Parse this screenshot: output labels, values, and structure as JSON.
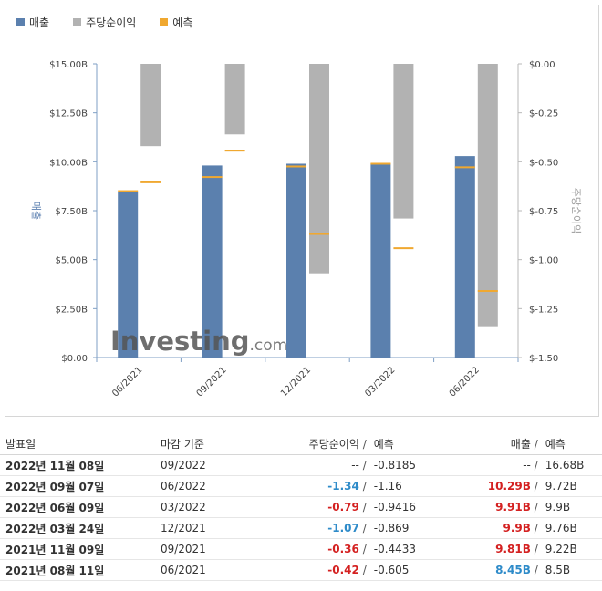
{
  "legend": {
    "revenue": "매출",
    "eps": "주당순이익",
    "forecast": "예측"
  },
  "colors": {
    "revenue": "#5b80ae",
    "eps": "#b2b2b2",
    "forecast": "#f0a830",
    "positive": "#2e8bc9",
    "negative": "#d42121"
  },
  "chart_data": {
    "type": "bar",
    "categories": [
      "06/2021",
      "09/2021",
      "12/2021",
      "03/2022",
      "06/2022"
    ],
    "left_axis": {
      "label": "매출",
      "min": 0,
      "max": 15,
      "ticks": [
        "$0.00",
        "$2.50B",
        "$5.00B",
        "$7.50B",
        "$10.00B",
        "$12.50B",
        "$15.00B"
      ],
      "tick_values": [
        0,
        2.5,
        5,
        7.5,
        10,
        12.5,
        15
      ]
    },
    "right_axis": {
      "label": "주당순이익",
      "min": -1.5,
      "max": 0,
      "ticks": [
        "$0.00",
        "$-0.25",
        "$-0.50",
        "$-0.75",
        "$-1.00",
        "$-1.25",
        "$-1.50"
      ],
      "tick_values": [
        0,
        -0.25,
        -0.5,
        -0.75,
        -1.0,
        -1.25,
        -1.5
      ]
    },
    "series": [
      {
        "name": "매출",
        "axis": "left",
        "values": [
          8.45,
          9.81,
          9.9,
          9.91,
          10.29
        ]
      },
      {
        "name": "매출 예측",
        "axis": "left",
        "values": [
          8.5,
          9.22,
          9.76,
          9.9,
          9.72
        ]
      },
      {
        "name": "주당순이익",
        "axis": "right",
        "values": [
          -0.42,
          -0.36,
          -1.07,
          -0.79,
          -1.34
        ]
      },
      {
        "name": "주당순이익 예측",
        "axis": "right",
        "values": [
          -0.605,
          -0.4433,
          -0.869,
          -0.9416,
          -1.16
        ]
      }
    ],
    "grid": false,
    "legend_position": "top-left"
  },
  "logo": {
    "brand": "Investing",
    "suffix": ".com"
  },
  "table": {
    "headers": {
      "date": "발표일",
      "period": "마감 기준",
      "eps": "주당순이익",
      "eps_forecast": "예측",
      "revenue": "매출",
      "revenue_forecast": "예측",
      "separator": "/"
    },
    "rows": [
      {
        "date": "2022년 11월 08일",
        "period": "09/2022",
        "eps": "--",
        "eps_class": "",
        "eps_forecast": "-0.8185",
        "revenue": "--",
        "revenue_class": "",
        "revenue_forecast": "16.68B"
      },
      {
        "date": "2022년 09월 07일",
        "period": "06/2022",
        "eps": "-1.34",
        "eps_class": "pos",
        "eps_forecast": "-1.16",
        "revenue": "10.29B",
        "revenue_class": "neg",
        "revenue_forecast": "9.72B"
      },
      {
        "date": "2022년 06월 09일",
        "period": "03/2022",
        "eps": "-0.79",
        "eps_class": "neg",
        "eps_forecast": "-0.9416",
        "revenue": "9.91B",
        "revenue_class": "neg",
        "revenue_forecast": "9.9B"
      },
      {
        "date": "2022년 03월 24일",
        "period": "12/2021",
        "eps": "-1.07",
        "eps_class": "pos",
        "eps_forecast": "-0.869",
        "revenue": "9.9B",
        "revenue_class": "neg",
        "revenue_forecast": "9.76B"
      },
      {
        "date": "2021년 11월 09일",
        "period": "09/2021",
        "eps": "-0.36",
        "eps_class": "neg",
        "eps_forecast": "-0.4433",
        "revenue": "9.81B",
        "revenue_class": "neg",
        "revenue_forecast": "9.22B"
      },
      {
        "date": "2021년 08월 11일",
        "period": "06/2021",
        "eps": "-0.42",
        "eps_class": "neg",
        "eps_forecast": "-0.605",
        "revenue": "8.45B",
        "revenue_class": "pos",
        "revenue_forecast": "8.5B"
      }
    ]
  }
}
